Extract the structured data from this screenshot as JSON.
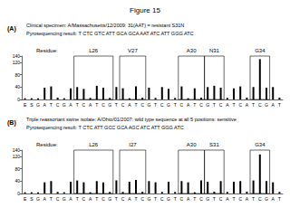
{
  "title": "Figure 15",
  "chart_data": [
    {
      "type": "bar",
      "panel": "(A)",
      "title": "Clinical specimen: A/Massachusetts/12/2009: 31(AAT) = resistant S31N",
      "subtitle": "Pyrosequencing result: T CTC GTC ATT GCA GCA AAT ATC ATT GGG ATC",
      "residue_label": "Residue:",
      "residues": [
        {
          "text": "L26",
          "from": 8,
          "to": 13
        },
        {
          "text": "V27",
          "from": 15,
          "to": 18
        },
        {
          "text": "A30",
          "from": 24,
          "to": 27
        },
        {
          "text": "N31",
          "from": 28,
          "to": 30
        },
        {
          "text": "G34",
          "from": 35,
          "to": 37
        }
      ],
      "categories": [
        "E",
        "S",
        "G",
        "A",
        "T",
        "C",
        "G",
        "A",
        "T",
        "C",
        "A",
        "T",
        "C",
        "G",
        "T",
        "C",
        "A",
        "T",
        "C",
        "G",
        "T",
        "C",
        "G",
        "T",
        "C",
        "A",
        "T",
        "C",
        "G",
        "T",
        "C",
        "A",
        "T",
        "C",
        "A",
        "T",
        "C",
        "G",
        "A",
        "T"
      ],
      "values": [
        4,
        4,
        4,
        38,
        42,
        6,
        4,
        36,
        40,
        34,
        5,
        44,
        38,
        5,
        40,
        36,
        4,
        42,
        6,
        38,
        5,
        40,
        34,
        5,
        42,
        4,
        36,
        6,
        40,
        44,
        38,
        5,
        36,
        42,
        6,
        40,
        130,
        38,
        40,
        6
      ],
      "ylim": [
        0,
        140
      ],
      "yticks": [
        0,
        40,
        80,
        120
      ],
      "color": "#000000",
      "grid": false
    },
    {
      "type": "bar",
      "panel": "(B)",
      "title": "Triple reassortant swine isolate: A/Ohio/01/2007: wild type sequence at all 5 positions: sensitive",
      "subtitle": "Pyrosequencing result: T CTC ATT GCC GCA AGC ATC ATT GGG ATC",
      "residue_label": "Residue:",
      "residues": [
        {
          "text": "L26",
          "from": 8,
          "to": 13
        },
        {
          "text": "I27",
          "from": 15,
          "to": 18
        },
        {
          "text": "A30",
          "from": 24,
          "to": 27
        },
        {
          "text": "S31",
          "from": 28,
          "to": 30
        },
        {
          "text": "G34",
          "from": 35,
          "to": 37
        }
      ],
      "categories": [
        "E",
        "S",
        "G",
        "A",
        "T",
        "C",
        "G",
        "A",
        "T",
        "C",
        "A",
        "T",
        "C",
        "G",
        "T",
        "C",
        "A",
        "T",
        "C",
        "G",
        "T",
        "C",
        "G",
        "T",
        "C",
        "A",
        "T",
        "C",
        "G",
        "T",
        "C",
        "A",
        "T",
        "C",
        "A",
        "T",
        "C",
        "G",
        "A",
        "T"
      ],
      "values": [
        4,
        4,
        4,
        36,
        40,
        5,
        4,
        38,
        42,
        36,
        4,
        40,
        36,
        5,
        42,
        5,
        38,
        44,
        6,
        40,
        36,
        5,
        38,
        5,
        40,
        36,
        4,
        42,
        38,
        6,
        40,
        5,
        38,
        40,
        6,
        42,
        126,
        40,
        36,
        5
      ],
      "ylim": [
        0,
        140
      ],
      "yticks": [
        0,
        40,
        80,
        120
      ],
      "color": "#000000",
      "grid": false
    }
  ]
}
